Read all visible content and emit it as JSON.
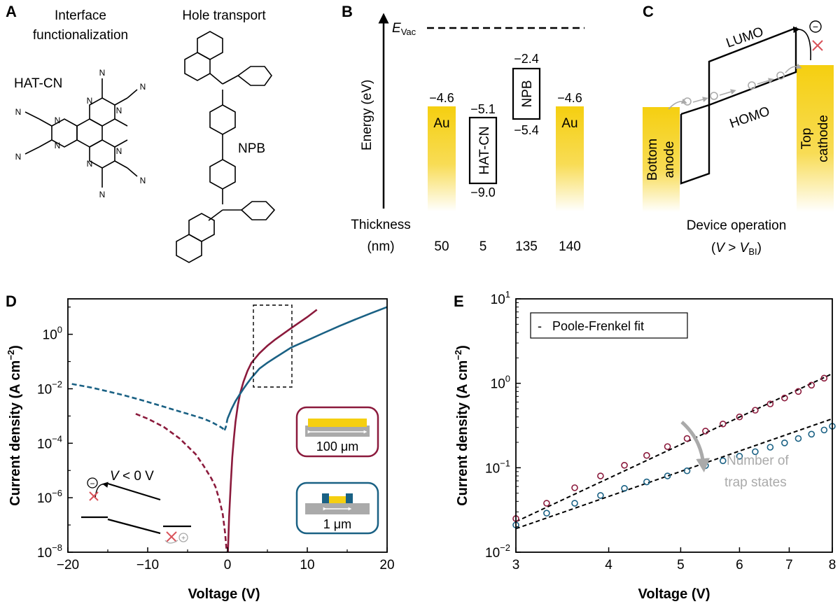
{
  "panels": {
    "A": {
      "label": "A",
      "col1_title_line1": "Interface",
      "col1_title_line2": "functionalization",
      "col2_title": "Hole transport",
      "mol1": "HAT-CN",
      "mol2": "NPB",
      "atom_N": "N"
    },
    "B": {
      "label": "B",
      "evac_main": "E",
      "evac_sub": "Vac",
      "ylabel": "Energy (eV)",
      "layers": [
        {
          "name": "Au",
          "level": "−4.6",
          "thickness": "50"
        },
        {
          "name": "HAT-CN",
          "upper": "−5.1",
          "lower": "−9.0",
          "thickness": "5"
        },
        {
          "name": "NPB",
          "upper": "−2.4",
          "lower": "−5.4",
          "thickness": "135"
        },
        {
          "name": "Au",
          "level": "−4.6",
          "thickness": "140"
        }
      ],
      "thickness_label": "Thickness",
      "thickness_unit": "(nm)"
    },
    "C": {
      "label": "C",
      "lumo": "LUMO",
      "homo": "HOMO",
      "anode_line1": "Bottom",
      "anode_line2": "anode",
      "cathode_line1": "Top",
      "cathode_line2": "cathode",
      "caption": "Device operation",
      "cond_open": "(",
      "cond_V": "V",
      "cond_gt": " > ",
      "cond_V2": "V",
      "cond_sub": "BI",
      "cond_close": ")",
      "minus": "−",
      "plus": "+"
    },
    "D": {
      "label": "D",
      "xlabel": "Voltage (V)",
      "ylabel_main": "Current density (A cm",
      "ylabel_sup": "−2",
      "ylabel_close": ")",
      "inset_cond_V": "V",
      "inset_cond_rest": " < 0 V",
      "inset1_label": "100 μm",
      "inset2_label": "1 μm",
      "minus": "−",
      "plus": "+"
    },
    "E": {
      "label": "E",
      "xlabel": "Voltage (V)",
      "ylabel_main": "Current density (A cm",
      "ylabel_sup": "−2",
      "ylabel_close": ")",
      "legend_dash": "-",
      "legend": "Poole-Frenkel fit",
      "annotation_line1": "Number of",
      "annotation_line2": "trap states"
    }
  },
  "colors": {
    "gold": "#f5cf10",
    "red": "#8b1a3c",
    "blue": "#1a6184",
    "gray_arrow": "#aaaaaa",
    "red_cross": "#d9535a"
  },
  "chart_data": [
    {
      "panel": "D",
      "type": "line",
      "xlabel": "Voltage (V)",
      "ylabel": "Current density (A cm−2)",
      "xlim": [
        -20,
        20
      ],
      "ylim": [
        1e-08,
        20
      ],
      "yscale": "log",
      "xticks": [
        -20,
        -10,
        0,
        10,
        20
      ],
      "xtick_labels": [
        "−20",
        "−10",
        "0",
        "10",
        "20"
      ],
      "yticks": [
        1e-08,
        1e-06,
        0.0001,
        0.01,
        1
      ],
      "ytick_labels": [
        {
          "base": "10",
          "exp": "−8"
        },
        {
          "base": "10",
          "exp": "−6"
        },
        {
          "base": "10",
          "exp": "−4"
        },
        {
          "base": "10",
          "exp": "−2"
        },
        {
          "base": "10",
          "exp": "0"
        }
      ],
      "series": [
        {
          "color": "#8b1a3c",
          "reverse": {
            "x": [
              -11.5,
              -10,
              -8,
              -6,
              -4,
              -3,
              -2,
              -1.5,
              -1,
              -0.6,
              -0.3,
              -0.1
            ],
            "y": [
              0.0012,
              0.0008,
              0.0004,
              0.00015,
              4e-05,
              1.5e-05,
              5e-06,
              2.5e-06,
              8e-07,
              2.5e-07,
              5e-08,
              1e-08
            ]
          },
          "forward": {
            "x": [
              0.05,
              0.2,
              0.4,
              0.6,
              0.8,
              1,
              1.3,
              1.6,
              2,
              2.5,
              3,
              4,
              5,
              6,
              7,
              8,
              9,
              10,
              11.2
            ],
            "y": [
              1e-08,
              2e-07,
              3e-06,
              3e-05,
              0.00015,
              0.0006,
              0.0025,
              0.007,
              0.018,
              0.045,
              0.09,
              0.2,
              0.38,
              0.65,
              1.05,
              1.7,
              2.7,
              4.3,
              8
            ]
          }
        },
        {
          "color": "#1a6184",
          "reverse": {
            "x": [
              -19.5,
              -17,
              -15,
              -13,
              -11,
              -9,
              -7,
              -5,
              -3,
              -2,
              -1.5,
              -1,
              -0.6,
              -0.4,
              -0.2,
              0
            ],
            "y": [
              0.015,
              0.011,
              0.008,
              0.0058,
              0.004,
              0.0027,
              0.0018,
              0.0012,
              0.0008,
              0.0006,
              0.0005,
              0.00042,
              0.00035,
              0.00028,
              0.0004,
              0.0008
            ]
          },
          "forward": {
            "x": [
              0,
              0.5,
              1,
              1.5,
              2,
              2.5,
              3,
              4,
              5,
              6,
              8,
              10,
              12,
              14,
              16,
              18,
              20
            ],
            "y": [
              0.0008,
              0.0018,
              0.0035,
              0.006,
              0.01,
              0.016,
              0.025,
              0.055,
              0.09,
              0.14,
              0.33,
              0.6,
              1.1,
              2,
              3.5,
              6,
              10
            ]
          }
        }
      ]
    },
    {
      "panel": "E",
      "type": "scatter",
      "xlabel": "Voltage (V)",
      "ylabel": "Current density (A cm−2)",
      "xlim": [
        3,
        8
      ],
      "ylim": [
        0.01,
        10
      ],
      "xscale": "log",
      "yscale": "log",
      "xticks": [
        3,
        4,
        5,
        6,
        7,
        8
      ],
      "yticks": [
        0.01,
        0.1,
        1,
        10
      ],
      "ytick_labels": [
        {
          "base": "10",
          "exp": "−2"
        },
        {
          "base": "10",
          "exp": "−1"
        },
        {
          "base": "10",
          "exp": "0"
        },
        {
          "base": "10",
          "exp": "1"
        }
      ],
      "series": [
        {
          "color": "#8b1a3c",
          "x": [
            3,
            3.3,
            3.6,
            3.9,
            4.2,
            4.5,
            4.8,
            5.1,
            5.4,
            5.7,
            6.0,
            6.3,
            6.6,
            6.9,
            7.2,
            7.5,
            7.8
          ],
          "y": [
            0.025,
            0.038,
            0.058,
            0.08,
            0.107,
            0.14,
            0.178,
            0.222,
            0.272,
            0.33,
            0.4,
            0.48,
            0.57,
            0.67,
            0.8,
            0.95,
            1.15
          ]
        },
        {
          "color": "#1a6184",
          "x": [
            3,
            3.3,
            3.6,
            3.9,
            4.2,
            4.5,
            4.8,
            5.1,
            5.4,
            5.7,
            6.0,
            6.3,
            6.6,
            6.9,
            7.2,
            7.5,
            7.8,
            8.0
          ],
          "y": [
            0.021,
            0.029,
            0.038,
            0.047,
            0.057,
            0.068,
            0.08,
            0.092,
            0.106,
            0.121,
            0.137,
            0.155,
            0.175,
            0.197,
            0.222,
            0.25,
            0.28,
            0.31
          ]
        }
      ],
      "fits": [
        {
          "color": "#000000",
          "x": [
            3,
            8
          ],
          "y": [
            0.023,
            1.3
          ]
        },
        {
          "color": "#000000",
          "x": [
            3,
            8
          ],
          "y": [
            0.019,
            0.38
          ]
        }
      ]
    }
  ]
}
